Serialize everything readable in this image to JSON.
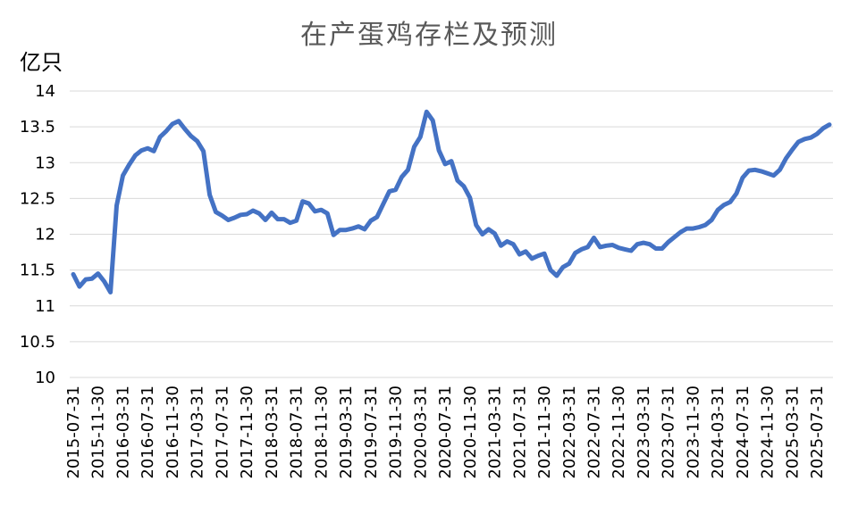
{
  "chart_data": {
    "type": "line",
    "title": "在产蛋鸡存栏及预测",
    "ylabel": "亿只",
    "xlabel": "",
    "ylim": [
      10,
      14
    ],
    "yticks": [
      "14",
      "13.5",
      "13",
      "12.5",
      "12",
      "11.5",
      "11",
      "10.5",
      "10"
    ],
    "xticks": [
      "2015-07-31",
      "2015-11-30",
      "2016-03-31",
      "2016-07-31",
      "2016-11-30",
      "2017-03-31",
      "2017-07-31",
      "2017-11-30",
      "2018-03-31",
      "2018-07-31",
      "2018-11-30",
      "2019-03-31",
      "2019-07-31",
      "2019-11-30",
      "2020-03-31",
      "2020-07-31",
      "2020-11-30",
      "2021-03-31",
      "2021-07-31",
      "2021-11-30",
      "2022-03-31",
      "2022-07-31",
      "2022-11-30",
      "2023-03-31",
      "2023-07-31",
      "2023-11-30",
      "2024-03-31",
      "2024-07-31",
      "2024-11-30",
      "2025-03-31",
      "2025-07-31"
    ],
    "grid": true,
    "line_color": "#4472C4",
    "series": [
      {
        "name": "",
        "values": [
          11.44,
          11.27,
          11.37,
          11.38,
          11.45,
          11.34,
          11.19,
          12.4,
          12.82,
          12.97,
          13.1,
          13.17,
          13.2,
          13.16,
          13.36,
          13.44,
          13.54,
          13.58,
          13.47,
          13.37,
          13.3,
          13.16,
          12.55,
          12.31,
          12.26,
          12.2,
          12.23,
          12.27,
          12.28,
          12.33,
          12.29,
          12.2,
          12.3,
          12.21,
          12.21,
          12.16,
          12.19,
          12.46,
          12.43,
          12.32,
          12.34,
          12.29,
          11.99,
          12.06,
          12.06,
          12.08,
          12.11,
          12.07,
          12.19,
          12.24,
          12.42,
          12.6,
          12.62,
          12.8,
          12.9,
          13.22,
          13.36,
          13.71,
          13.59,
          13.17,
          12.98,
          13.02,
          12.75,
          12.67,
          12.51,
          12.13,
          12.0,
          12.07,
          12.01,
          11.84,
          11.9,
          11.86,
          11.72,
          11.76,
          11.66,
          11.7,
          11.73,
          11.5,
          11.42,
          11.54,
          11.59,
          11.74,
          11.79,
          11.82,
          11.95,
          11.82,
          11.84,
          11.85,
          11.81,
          11.79,
          11.77,
          11.86,
          11.88,
          11.86,
          11.8,
          11.8,
          11.89,
          11.96,
          12.03,
          12.08,
          12.08,
          12.1,
          12.13,
          12.2,
          12.34,
          12.41,
          12.45,
          12.57,
          12.79,
          12.89,
          12.9,
          12.88,
          12.85,
          12.82,
          12.9,
          13.06,
          13.18,
          13.29,
          13.33,
          13.35,
          13.4,
          13.48,
          13.53
        ]
      }
    ]
  }
}
